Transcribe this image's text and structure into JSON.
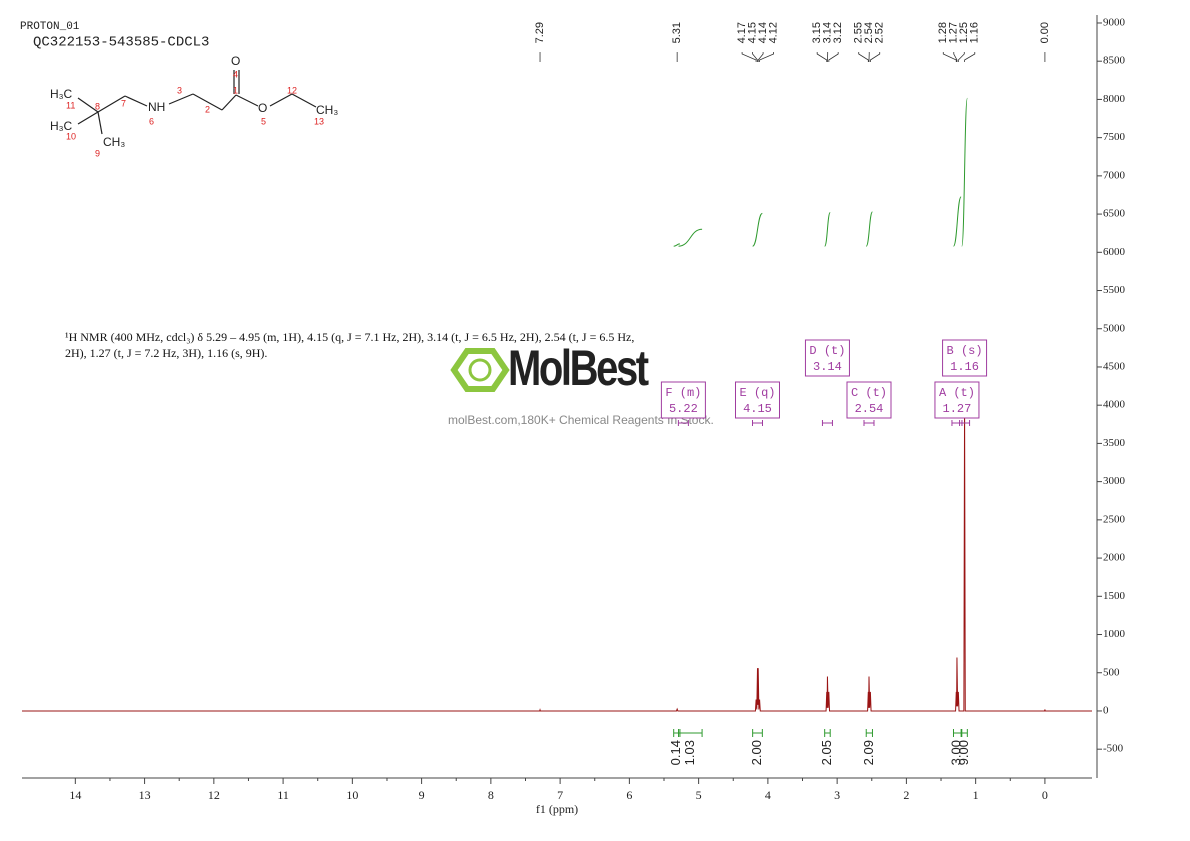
{
  "header": {
    "experiment": "PROTON_01",
    "sample": "QC322153-543585-CDCL3"
  },
  "structure": {
    "atoms": [
      "H₃C",
      "H₃C",
      "CH₃",
      "NH",
      "O",
      "O",
      "CH₃"
    ],
    "numbers": [
      "11",
      "8",
      "7",
      "6",
      "3",
      "2",
      "1",
      "4",
      "5",
      "12",
      "13",
      "10",
      "9"
    ]
  },
  "description": "¹H NMR (400 MHz, cdcl₃) δ 5.29 – 4.95 (m, 1H), 4.15 (q, J = 7.1 Hz, 2H), 3.14 (t, J = 6.5 Hz, 2H), 2.54 (t, J = 6.5 Hz, 2H), 1.27 (t, J = 7.2 Hz, 3H), 1.16 (s, 9H).",
  "watermark": {
    "brand": "MolBest",
    "tagline": "molBest.com,180K+ Chemical Reagents In Stock."
  },
  "chart_data": {
    "type": "nmr",
    "xlabel": "f1 (ppm)",
    "xlim": [
      14.77,
      -0.68
    ],
    "xticks": [
      14,
      13,
      12,
      11,
      10,
      9,
      8,
      7,
      6,
      5,
      4,
      3,
      2,
      1,
      0
    ],
    "ylim": [
      -877,
      9039
    ],
    "yticks": [
      -500,
      0,
      500,
      1000,
      1500,
      2000,
      2500,
      3000,
      3500,
      4000,
      4500,
      5000,
      5500,
      6000,
      6500,
      7000,
      7500,
      8000,
      8500,
      9000
    ],
    "spectrum": {
      "color": "#9a1414",
      "x": [
        14.77,
        7.295,
        7.29,
        7.285,
        5.32,
        5.31,
        5.3,
        4.18,
        4.17,
        4.16,
        4.15,
        4.145,
        4.14,
        4.13,
        4.12,
        4.11,
        3.16,
        3.15,
        3.145,
        3.14,
        3.13,
        3.12,
        3.11,
        2.56,
        2.55,
        2.545,
        2.54,
        2.53,
        2.52,
        2.51,
        1.29,
        1.28,
        1.275,
        1.27,
        1.26,
        1.25,
        1.24,
        1.17,
        1.16,
        1.15,
        0.005,
        0,
        -0.005,
        -0.68
      ],
      "values": [
        0,
        0,
        15,
        0,
        0,
        25,
        0,
        0,
        150,
        20,
        560,
        80,
        560,
        20,
        150,
        0,
        0,
        250,
        40,
        450,
        40,
        250,
        0,
        0,
        250,
        40,
        450,
        40,
        250,
        0,
        0,
        250,
        60,
        700,
        60,
        250,
        0,
        0,
        4100,
        0,
        0,
        20,
        0,
        0
      ]
    },
    "peak_labels": [
      7.29,
      5.31,
      4.17,
      4.15,
      4.14,
      4.12,
      3.15,
      3.14,
      3.12,
      2.55,
      2.54,
      2.52,
      1.28,
      1.27,
      1.25,
      1.16,
      {
        "value": 0,
        "label": "0.00"
      }
    ],
    "integrals": {
      "color": "#2e9a2e",
      "from": [
        5.36,
        5.29,
        4.22,
        3.18,
        2.58,
        1.32,
        1.2
      ],
      "to": [
        5.27,
        4.95,
        4.08,
        3.1,
        2.49,
        1.21,
        1.12
      ],
      "values": [
        0.14,
        1.03,
        2,
        2.05,
        2.09,
        3,
        9
      ],
      "value_labels": [
        "0.14",
        "1.03",
        "2.00",
        "2.05",
        "2.09",
        "3.00",
        "9.00"
      ]
    },
    "multiplets": {
      "color": "#a03ca0",
      "labels": [
        "A (t)",
        "B (s)",
        "C (t)",
        "D (t)",
        "E (q)",
        "F (m)"
      ],
      "shifts": [
        1.27,
        1.16,
        2.54,
        3.14,
        4.15,
        5.22
      ]
    }
  }
}
